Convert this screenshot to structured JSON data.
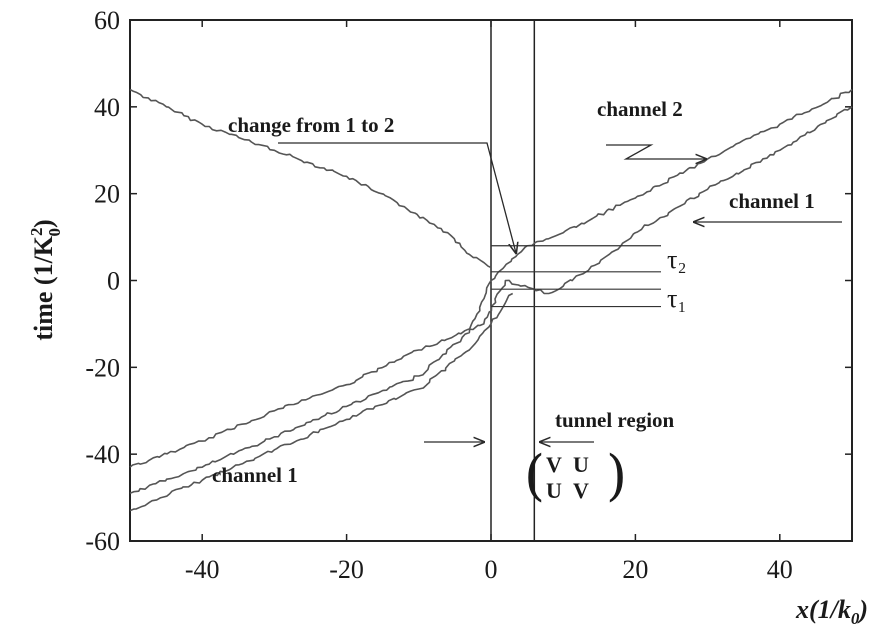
{
  "chart_data": {
    "type": "line",
    "title": "",
    "xlabel": "x(1/k_0)",
    "ylabel": "time (1/K_0^2)",
    "xlim": [
      -50,
      50
    ],
    "ylim": [
      -60,
      60
    ],
    "xticks": [
      -40,
      -20,
      0,
      20,
      40
    ],
    "yticks": [
      60,
      40,
      20,
      0,
      -20,
      -40,
      -60
    ],
    "x_tick_labels": [
      "-40",
      "-20",
      "0",
      "20",
      "40"
    ],
    "y_tick_labels": [
      "60",
      "40",
      "20",
      "0",
      "-20",
      "-40",
      "-60"
    ],
    "grid": false,
    "legend": "none",
    "series": [
      {
        "x": [
          -50,
          -40,
          -30,
          -20,
          -12,
          -6,
          -3,
          0
        ],
        "y": [
          44,
          36,
          30,
          24,
          17,
          11,
          6,
          3
        ]
      },
      {
        "x": [
          -50,
          -40,
          -30,
          -20,
          -10,
          -3,
          0,
          5,
          10,
          20,
          30,
          40,
          50
        ],
        "y": [
          -49,
          -43,
          -36,
          -29,
          -22,
          -12,
          0,
          8,
          11,
          19,
          28,
          36,
          44
        ]
      },
      {
        "x": [
          -50,
          -40,
          -30,
          -20,
          -10,
          -1,
          2,
          8,
          15,
          20,
          30,
          40,
          50
        ],
        "y": [
          -43,
          -37,
          -30,
          -24,
          -16,
          -10,
          0,
          -3,
          4,
          11,
          21,
          30,
          40
        ]
      },
      {
        "x": [
          -50,
          -40,
          -30,
          -20,
          -10,
          -3,
          0,
          3
        ],
        "y": [
          -53,
          -46,
          -39,
          -32,
          -25,
          -16,
          -10,
          -3
        ]
      }
    ],
    "vertical_lines_x": [
      0,
      6
    ],
    "marker_lines": [
      {
        "label": "τ₂",
        "y": [
          8,
          2
        ]
      },
      {
        "label": "τ₁",
        "y": [
          -2,
          -6
        ]
      }
    ],
    "annotations": {
      "change": "change from 1 to 2",
      "channel2": "channel 2",
      "channel1_right": "channel 1",
      "channel1_left": "channel 1",
      "tunnel": "tunnel region"
    },
    "matrix": {
      "row1": "V U",
      "row2": "U V"
    }
  }
}
